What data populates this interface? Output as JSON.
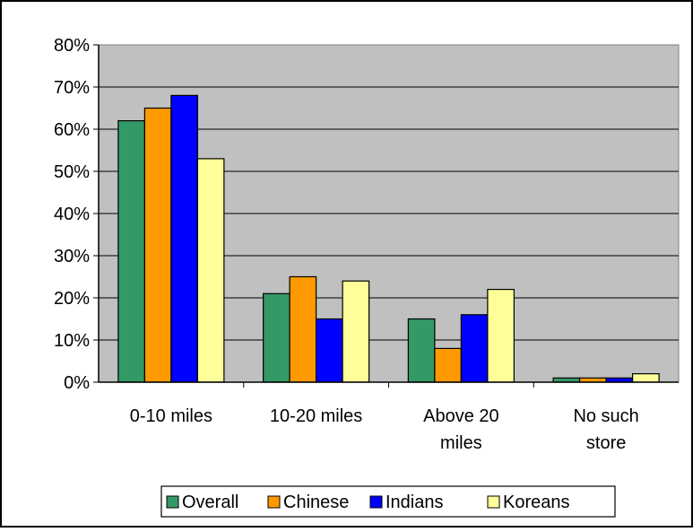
{
  "chart_data": {
    "type": "bar",
    "categories": [
      [
        "0-10 miles"
      ],
      [
        "10-20 miles"
      ],
      [
        "Above 20",
        "miles"
      ],
      [
        "No such",
        "store"
      ]
    ],
    "series": [
      {
        "name": "Overall",
        "color": "#339966",
        "values": [
          0.62,
          0.21,
          0.15,
          0.01
        ]
      },
      {
        "name": "Chinese",
        "color": "#ff9900",
        "values": [
          0.65,
          0.25,
          0.08,
          0.01
        ]
      },
      {
        "name": "Indians",
        "color": "#0000ff",
        "values": [
          0.68,
          0.15,
          0.16,
          0.01
        ]
      },
      {
        "name": "Koreans",
        "color": "#ffff99",
        "values": [
          0.53,
          0.24,
          0.22,
          0.02
        ]
      }
    ],
    "y_ticks": [
      "0%",
      "10%",
      "20%",
      "30%",
      "40%",
      "50%",
      "60%",
      "70%",
      "80%"
    ],
    "ylim": [
      0,
      0.8
    ],
    "grid": true,
    "legend_position": "bottom",
    "plot_background": "#c0c0c0"
  }
}
